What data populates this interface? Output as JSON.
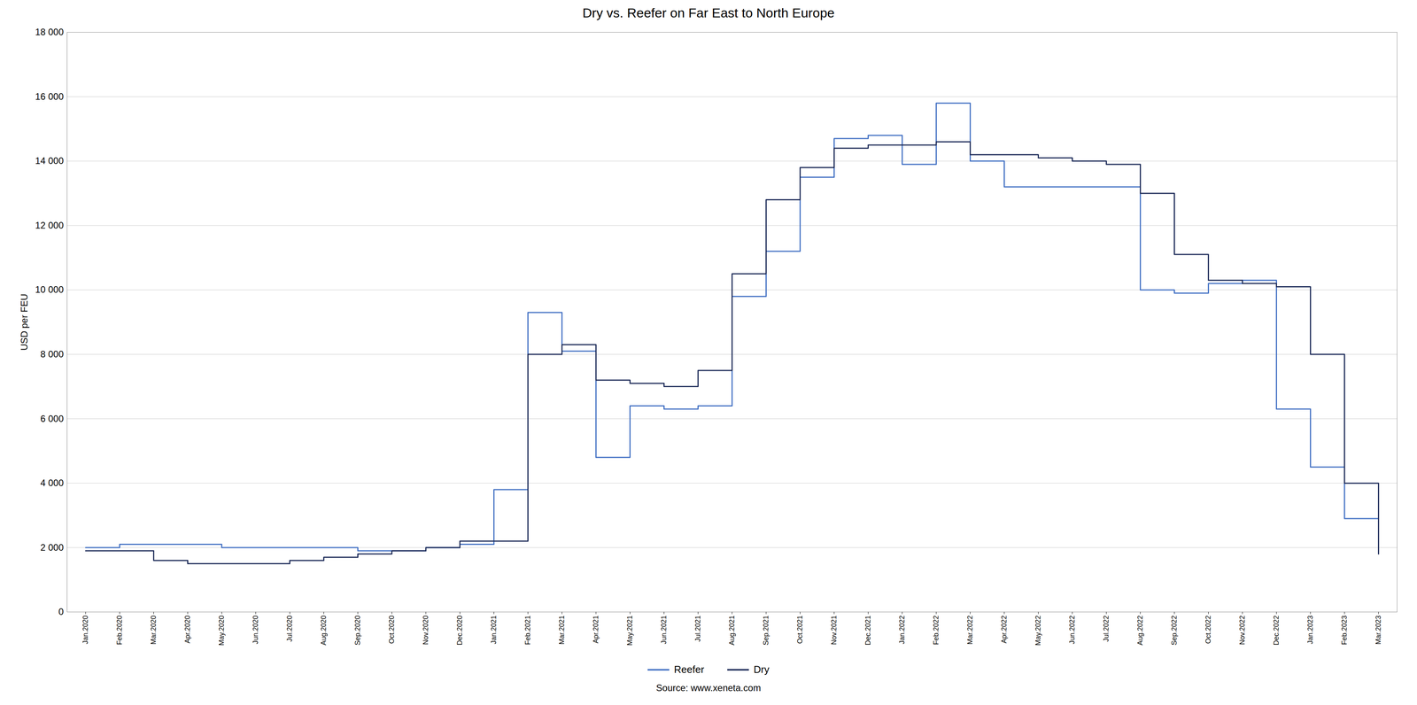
{
  "chart_data": {
    "type": "step",
    "title": "Dry vs. Reefer on Far East to North Europe",
    "ylabel": "USD per FEU",
    "source": "Source: www.xeneta.com",
    "categories": [
      "Jan.2020",
      "Feb.2020",
      "Mar.2020",
      "Apr.2020",
      "May.2020",
      "Jun.2020",
      "Jul.2020",
      "Aug.2020",
      "Sep.2020",
      "Oct.2020",
      "Nov.2020",
      "Dec.2020",
      "Jan.2021",
      "Feb.2021",
      "Mar.2021",
      "Apr.2021",
      "May.2021",
      "Jun.2021",
      "Jul.2021",
      "Aug.2021",
      "Sep.2021",
      "Oct.2021",
      "Nov.2021",
      "Dec.2021",
      "Jan.2022",
      "Feb.2022",
      "Mar.2022",
      "Apr.2022",
      "May.2022",
      "Jun.2022",
      "Jul.2022",
      "Aug.2022",
      "Sep.2022",
      "Oct.2022",
      "Nov.2022",
      "Dec.2022",
      "Jan.2023",
      "Feb.2023",
      "Mar.2023"
    ],
    "series": [
      {
        "name": "Reefer",
        "color": "#4472C4",
        "values": [
          2000,
          2100,
          2100,
          2100,
          2000,
          2000,
          2000,
          2000,
          1900,
          1900,
          2000,
          2100,
          3800,
          9300,
          8100,
          4800,
          6400,
          6300,
          6400,
          9800,
          11200,
          13500,
          14700,
          14800,
          13900,
          15800,
          14000,
          13200,
          13200,
          13200,
          13200,
          10000,
          9900,
          10200,
          10300,
          6300,
          4500,
          2900,
          2500
        ]
      },
      {
        "name": "Dry",
        "color": "#1F2D5A",
        "values": [
          1900,
          1900,
          1600,
          1500,
          1500,
          1500,
          1600,
          1700,
          1800,
          1900,
          2000,
          2200,
          2200,
          8000,
          8300,
          7200,
          7100,
          7000,
          7500,
          10500,
          12800,
          13800,
          14400,
          14500,
          14500,
          14600,
          14200,
          14200,
          14100,
          14000,
          13900,
          13000,
          11100,
          10300,
          10200,
          10100,
          8000,
          4000,
          1800
        ]
      }
    ],
    "ylim": [
      0,
      18000
    ],
    "yticks": [
      0,
      {
        "value": 2000,
        "label": "2 000"
      },
      {
        "value": 4000,
        "label": "4 000"
      },
      {
        "value": 6000,
        "label": "6 000"
      },
      {
        "value": 8000,
        "label": "8 000"
      },
      {
        "value": 10000,
        "label": "10 000"
      },
      {
        "value": 12000,
        "label": "12 000"
      },
      {
        "value": 14000,
        "label": "14 000"
      },
      {
        "value": 16000,
        "label": "16 000"
      },
      {
        "value": 18000,
        "label": "18 000"
      }
    ],
    "grid": true,
    "legend": "bottom"
  }
}
